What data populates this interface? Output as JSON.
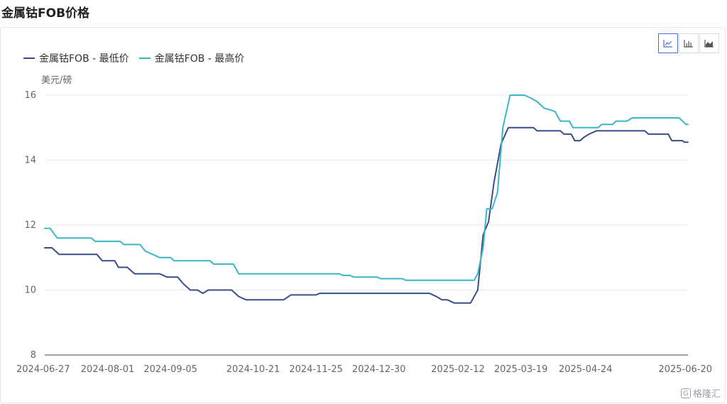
{
  "page_title": "金属钴FOB价格",
  "toolbar": {
    "buttons": [
      {
        "icon": "line-chart-icon",
        "active": true
      },
      {
        "icon": "bar-chart-icon",
        "active": false
      },
      {
        "icon": "area-chart-icon",
        "active": false
      }
    ]
  },
  "watermark": {
    "text": "格隆汇",
    "logo": "G"
  },
  "colors": {
    "low": "#3b4c8a",
    "high": "#3bb6c6",
    "grid": "#e8e8e8",
    "axis": "#444444"
  },
  "chart_data": {
    "type": "line",
    "ylabel": "美元/磅",
    "ylim": [
      8,
      16
    ],
    "yticks": [
      8,
      10,
      12,
      14,
      16
    ],
    "xlim": [
      "2024-06-27",
      "2025-06-20"
    ],
    "xticks": [
      "2024-06-27",
      "2024-08-01",
      "2024-09-05",
      "2024-10-21",
      "2024-11-25",
      "2024-12-30",
      "2025-02-12",
      "2025-03-19",
      "2025-04-24",
      "2025-06-20"
    ],
    "grid": true,
    "legend_position": "top-left",
    "series": [
      {
        "name": "金属钴FOB - 最低价",
        "points": [
          [
            "2024-06-27",
            11.3
          ],
          [
            "2024-07-01",
            11.3
          ],
          [
            "2024-07-05",
            11.1
          ],
          [
            "2024-07-26",
            11.1
          ],
          [
            "2024-07-29",
            10.9
          ],
          [
            "2024-08-05",
            10.9
          ],
          [
            "2024-08-07",
            10.7
          ],
          [
            "2024-08-12",
            10.7
          ],
          [
            "2024-08-16",
            10.5
          ],
          [
            "2024-08-30",
            10.5
          ],
          [
            "2024-09-03",
            10.4
          ],
          [
            "2024-09-09",
            10.4
          ],
          [
            "2024-09-12",
            10.2
          ],
          [
            "2024-09-16",
            10.0
          ],
          [
            "2024-09-20",
            10.0
          ],
          [
            "2024-09-23",
            9.9
          ],
          [
            "2024-09-26",
            10.0
          ],
          [
            "2024-10-09",
            10.0
          ],
          [
            "2024-10-13",
            9.8
          ],
          [
            "2024-10-17",
            9.7
          ],
          [
            "2024-11-07",
            9.7
          ],
          [
            "2024-11-11",
            9.85
          ],
          [
            "2024-11-25",
            9.85
          ],
          [
            "2024-11-27",
            9.9
          ],
          [
            "2025-01-27",
            9.9
          ],
          [
            "2025-01-31",
            9.8
          ],
          [
            "2025-02-03",
            9.7
          ],
          [
            "2025-02-06",
            9.7
          ],
          [
            "2025-02-10",
            9.6
          ],
          [
            "2025-02-19",
            9.6
          ],
          [
            "2025-02-23",
            10.0
          ],
          [
            "2025-02-26",
            11.7
          ],
          [
            "2025-03-01",
            12.1
          ],
          [
            "2025-03-04",
            13.3
          ],
          [
            "2025-03-08",
            14.5
          ],
          [
            "2025-03-12",
            15.0
          ],
          [
            "2025-03-26",
            15.0
          ],
          [
            "2025-03-28",
            14.9
          ],
          [
            "2025-04-10",
            14.9
          ],
          [
            "2025-04-12",
            14.8
          ],
          [
            "2025-04-16",
            14.8
          ],
          [
            "2025-04-18",
            14.6
          ],
          [
            "2025-04-21",
            14.6
          ],
          [
            "2025-04-23",
            14.7
          ],
          [
            "2025-04-26",
            14.8
          ],
          [
            "2025-04-30",
            14.9
          ],
          [
            "2025-05-27",
            14.9
          ],
          [
            "2025-05-29",
            14.8
          ],
          [
            "2025-06-09",
            14.8
          ],
          [
            "2025-06-11",
            14.6
          ],
          [
            "2025-06-17",
            14.6
          ],
          [
            "2025-06-18",
            14.55
          ],
          [
            "2025-06-20",
            14.55
          ]
        ]
      },
      {
        "name": "金属钴FOB - 最高价",
        "points": [
          [
            "2024-06-27",
            11.9
          ],
          [
            "2024-06-30",
            11.9
          ],
          [
            "2024-07-04",
            11.6
          ],
          [
            "2024-07-23",
            11.6
          ],
          [
            "2024-07-25",
            11.5
          ],
          [
            "2024-08-08",
            11.5
          ],
          [
            "2024-08-10",
            11.4
          ],
          [
            "2024-08-19",
            11.4
          ],
          [
            "2024-08-22",
            11.2
          ],
          [
            "2024-08-26",
            11.1
          ],
          [
            "2024-08-30",
            11.0
          ],
          [
            "2024-09-05",
            11.0
          ],
          [
            "2024-09-07",
            10.9
          ],
          [
            "2024-09-27",
            10.9
          ],
          [
            "2024-09-29",
            10.8
          ],
          [
            "2024-10-10",
            10.8
          ],
          [
            "2024-10-13",
            10.5
          ],
          [
            "2024-12-08",
            10.5
          ],
          [
            "2024-12-10",
            10.45
          ],
          [
            "2024-12-14",
            10.45
          ],
          [
            "2024-12-16",
            10.4
          ],
          [
            "2024-12-29",
            10.4
          ],
          [
            "2024-12-31",
            10.35
          ],
          [
            "2025-01-12",
            10.35
          ],
          [
            "2025-01-14",
            10.3
          ],
          [
            "2025-02-21",
            10.3
          ],
          [
            "2025-02-23",
            10.5
          ],
          [
            "2025-02-26",
            11.3
          ],
          [
            "2025-02-28",
            12.5
          ],
          [
            "2025-03-03",
            12.5
          ],
          [
            "2025-03-06",
            13.0
          ],
          [
            "2025-03-09",
            15.0
          ],
          [
            "2025-03-13",
            16.0
          ],
          [
            "2025-03-21",
            16.0
          ],
          [
            "2025-03-25",
            15.9
          ],
          [
            "2025-03-28",
            15.8
          ],
          [
            "2025-04-01",
            15.6
          ],
          [
            "2025-04-07",
            15.5
          ],
          [
            "2025-04-10",
            15.2
          ],
          [
            "2025-04-15",
            15.2
          ],
          [
            "2025-04-17",
            15.0
          ],
          [
            "2025-05-01",
            15.0
          ],
          [
            "2025-05-03",
            15.1
          ],
          [
            "2025-05-09",
            15.1
          ],
          [
            "2025-05-11",
            15.2
          ],
          [
            "2025-05-17",
            15.2
          ],
          [
            "2025-05-20",
            15.3
          ],
          [
            "2025-06-15",
            15.3
          ],
          [
            "2025-06-17",
            15.2
          ],
          [
            "2025-06-19",
            15.1
          ],
          [
            "2025-06-20",
            15.1
          ]
        ]
      }
    ]
  }
}
